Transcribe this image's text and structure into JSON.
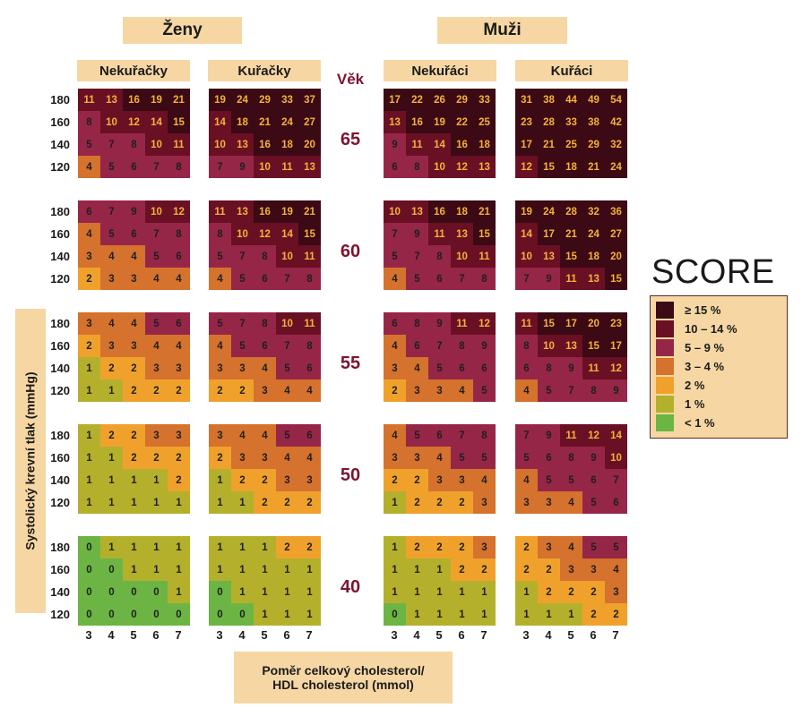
{
  "group_headers": [
    "Ženy",
    "Muži"
  ],
  "sub_headers": [
    "Nekuřačky",
    "Kuřačky",
    "Nekuřáci",
    "Kuřáci"
  ],
  "age_label": "Věk",
  "ages": [
    "65",
    "60",
    "55",
    "50",
    "40"
  ],
  "y_ticks": [
    "180",
    "160",
    "140",
    "120"
  ],
  "x_ticks": [
    "3",
    "4",
    "5",
    "6",
    "7"
  ],
  "y_axis_title": "Systolický krevní tlak (mmHg)",
  "x_axis_title_line1": "Poměr celkový cholesterol/",
  "x_axis_title_line2": "HDL cholesterol  (mmol)",
  "legend_title": "SCORE",
  "legend": [
    {
      "label": "≥ 15 %",
      "color": "#3b0a14"
    },
    {
      "label": "10 – 14 %",
      "color": "#6a1024"
    },
    {
      "label": "5 – 9 %",
      "color": "#962648"
    },
    {
      "label": "3 – 4 %",
      "color": "#d5722e"
    },
    {
      "label": "2 %",
      "color": "#f0a12c"
    },
    {
      "label": "1 %",
      "color": "#b4b02c"
    },
    {
      "label": "< 1 %",
      "color": "#6cb544"
    }
  ],
  "chart_data": {
    "type": "heatmap",
    "title": "SCORE",
    "xlabel": "Poměr celkový cholesterol/ HDL cholesterol  (mmol)",
    "ylabel": "Systolický krevní tlak (mmHg)",
    "x": [
      3,
      4,
      5,
      6,
      7
    ],
    "y": [
      180,
      160,
      140,
      120
    ],
    "groups": [
      {
        "sex": "Ženy",
        "smoking": "Nekuřačky",
        "panels": [
          {
            "age": 65,
            "values": [
              [
                11,
                13,
                16,
                19,
                21
              ],
              [
                8,
                10,
                12,
                14,
                15
              ],
              [
                5,
                7,
                8,
                10,
                11
              ],
              [
                4,
                5,
                6,
                7,
                8
              ]
            ]
          },
          {
            "age": 60,
            "values": [
              [
                6,
                7,
                9,
                10,
                12
              ],
              [
                4,
                5,
                6,
                7,
                8
              ],
              [
                3,
                4,
                4,
                5,
                6
              ],
              [
                2,
                3,
                3,
                4,
                4
              ]
            ]
          },
          {
            "age": 55,
            "values": [
              [
                3,
                4,
                4,
                5,
                6
              ],
              [
                2,
                3,
                3,
                4,
                4
              ],
              [
                1,
                2,
                2,
                3,
                3
              ],
              [
                1,
                1,
                2,
                2,
                2
              ]
            ]
          },
          {
            "age": 50,
            "values": [
              [
                1,
                2,
                2,
                3,
                3
              ],
              [
                1,
                1,
                2,
                2,
                2
              ],
              [
                1,
                1,
                1,
                1,
                2
              ],
              [
                1,
                1,
                1,
                1,
                1
              ]
            ]
          },
          {
            "age": 40,
            "values": [
              [
                0,
                1,
                1,
                1,
                1
              ],
              [
                0,
                0,
                1,
                1,
                1
              ],
              [
                0,
                0,
                0,
                0,
                1
              ],
              [
                0,
                0,
                0,
                0,
                0
              ]
            ]
          }
        ]
      },
      {
        "sex": "Ženy",
        "smoking": "Kuřačky",
        "panels": [
          {
            "age": 65,
            "values": [
              [
                19,
                24,
                29,
                33,
                37
              ],
              [
                14,
                18,
                21,
                24,
                27
              ],
              [
                10,
                13,
                16,
                18,
                20
              ],
              [
                7,
                9,
                10,
                11,
                13
              ]
            ]
          },
          {
            "age": 60,
            "values": [
              [
                11,
                13,
                16,
                19,
                21
              ],
              [
                8,
                10,
                12,
                14,
                15
              ],
              [
                5,
                7,
                8,
                10,
                11
              ],
              [
                4,
                5,
                6,
                7,
                8
              ]
            ]
          },
          {
            "age": 55,
            "values": [
              [
                5,
                7,
                8,
                10,
                11
              ],
              [
                4,
                5,
                6,
                7,
                8
              ],
              [
                3,
                3,
                4,
                5,
                6
              ],
              [
                2,
                2,
                3,
                4,
                4
              ]
            ]
          },
          {
            "age": 50,
            "values": [
              [
                3,
                4,
                4,
                5,
                6
              ],
              [
                2,
                3,
                3,
                4,
                4
              ],
              [
                1,
                2,
                2,
                3,
                3
              ],
              [
                1,
                1,
                2,
                2,
                2
              ]
            ]
          },
          {
            "age": 40,
            "values": [
              [
                1,
                1,
                1,
                2,
                2
              ],
              [
                1,
                1,
                1,
                1,
                1
              ],
              [
                0,
                1,
                1,
                1,
                1
              ],
              [
                0,
                0,
                1,
                1,
                1
              ]
            ]
          }
        ]
      },
      {
        "sex": "Muži",
        "smoking": "Nekuřáci",
        "panels": [
          {
            "age": 65,
            "values": [
              [
                17,
                22,
                26,
                29,
                33
              ],
              [
                13,
                16,
                19,
                22,
                25
              ],
              [
                9,
                11,
                14,
                16,
                18
              ],
              [
                6,
                8,
                10,
                12,
                13
              ]
            ]
          },
          {
            "age": 60,
            "values": [
              [
                10,
                13,
                16,
                18,
                21
              ],
              [
                7,
                9,
                11,
                13,
                15
              ],
              [
                5,
                7,
                8,
                10,
                11
              ],
              [
                4,
                5,
                6,
                7,
                8
              ]
            ]
          },
          {
            "age": 55,
            "values": [
              [
                6,
                8,
                9,
                11,
                12
              ],
              [
                4,
                6,
                7,
                8,
                9
              ],
              [
                3,
                4,
                5,
                6,
                6
              ],
              [
                2,
                3,
                3,
                4,
                5
              ]
            ]
          },
          {
            "age": 50,
            "values": [
              [
                4,
                5,
                6,
                7,
                8
              ],
              [
                3,
                3,
                4,
                5,
                5
              ],
              [
                2,
                2,
                3,
                3,
                4
              ],
              [
                1,
                2,
                2,
                2,
                3
              ]
            ]
          },
          {
            "age": 40,
            "values": [
              [
                1,
                2,
                2,
                2,
                3
              ],
              [
                1,
                1,
                1,
                2,
                2
              ],
              [
                1,
                1,
                1,
                1,
                1
              ],
              [
                0,
                1,
                1,
                1,
                1
              ]
            ]
          }
        ]
      },
      {
        "sex": "Muži",
        "smoking": "Kuřáci",
        "panels": [
          {
            "age": 65,
            "values": [
              [
                31,
                38,
                44,
                49,
                54
              ],
              [
                23,
                28,
                33,
                38,
                42
              ],
              [
                17,
                21,
                25,
                29,
                32
              ],
              [
                12,
                15,
                18,
                21,
                24
              ]
            ]
          },
          {
            "age": 60,
            "values": [
              [
                19,
                24,
                28,
                32,
                36
              ],
              [
                14,
                17,
                21,
                24,
                27
              ],
              [
                10,
                13,
                15,
                18,
                20
              ],
              [
                7,
                9,
                11,
                13,
                15
              ]
            ]
          },
          {
            "age": 55,
            "values": [
              [
                11,
                15,
                17,
                20,
                23
              ],
              [
                8,
                10,
                13,
                15,
                17
              ],
              [
                6,
                8,
                9,
                11,
                12
              ],
              [
                4,
                5,
                7,
                8,
                9
              ]
            ]
          },
          {
            "age": 50,
            "values": [
              [
                7,
                9,
                11,
                12,
                14
              ],
              [
                5,
                6,
                8,
                9,
                10
              ],
              [
                4,
                5,
                5,
                6,
                7
              ],
              [
                3,
                3,
                4,
                5,
                6
              ]
            ]
          },
          {
            "age": 40,
            "values": [
              [
                2,
                3,
                4,
                5,
                5
              ],
              [
                2,
                2,
                3,
                3,
                4
              ],
              [
                1,
                2,
                2,
                2,
                3
              ],
              [
                1,
                1,
                1,
                2,
                2
              ]
            ]
          }
        ]
      }
    ]
  }
}
